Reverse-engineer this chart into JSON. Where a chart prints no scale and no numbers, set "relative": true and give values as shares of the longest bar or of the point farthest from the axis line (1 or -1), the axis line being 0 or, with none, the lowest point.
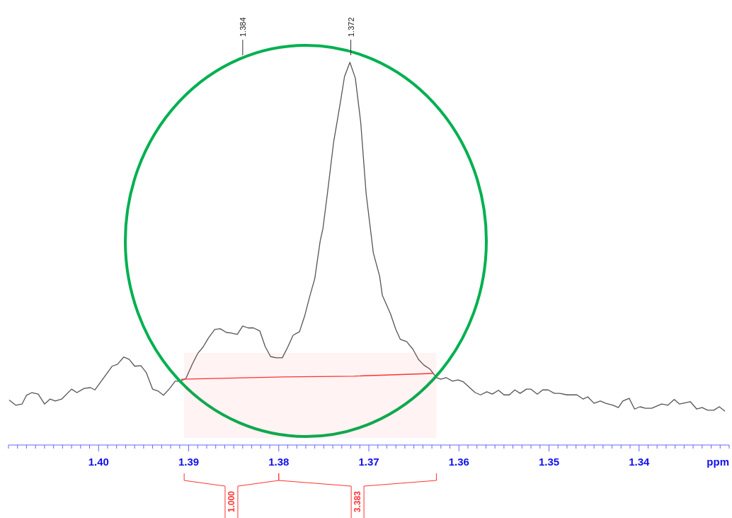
{
  "chart_data": {
    "type": "line",
    "relative": true,
    "xlabel": "ppm",
    "xlim": [
      1.41,
      1.33
    ],
    "xticks": [
      {
        "value": 1.41,
        "label": null
      },
      {
        "value": 1.409,
        "label": null
      },
      {
        "value": 1.408,
        "label": null
      },
      {
        "value": 1.407,
        "label": null
      },
      {
        "value": 1.406,
        "label": null
      },
      {
        "value": 1.405,
        "label": null
      },
      {
        "value": 1.404,
        "label": null
      },
      {
        "value": 1.403,
        "label": null
      },
      {
        "value": 1.402,
        "label": null
      },
      {
        "value": 1.401,
        "label": null
      },
      {
        "value": 1.4,
        "label": "1.40"
      },
      {
        "value": 1.399,
        "label": null
      },
      {
        "value": 1.398,
        "label": null
      },
      {
        "value": 1.397,
        "label": null
      },
      {
        "value": 1.396,
        "label": null
      },
      {
        "value": 1.395,
        "label": null
      },
      {
        "value": 1.394,
        "label": null
      },
      {
        "value": 1.393,
        "label": null
      },
      {
        "value": 1.392,
        "label": null
      },
      {
        "value": 1.391,
        "label": null
      },
      {
        "value": 1.39,
        "label": "1.39"
      },
      {
        "value": 1.389,
        "label": null
      },
      {
        "value": 1.388,
        "label": null
      },
      {
        "value": 1.387,
        "label": null
      },
      {
        "value": 1.386,
        "label": null
      },
      {
        "value": 1.385,
        "label": null
      },
      {
        "value": 1.384,
        "label": null
      },
      {
        "value": 1.383,
        "label": null
      },
      {
        "value": 1.382,
        "label": null
      },
      {
        "value": 1.381,
        "label": null
      },
      {
        "value": 1.38,
        "label": "1.38"
      },
      {
        "value": 1.379,
        "label": null
      },
      {
        "value": 1.378,
        "label": null
      },
      {
        "value": 1.377,
        "label": null
      },
      {
        "value": 1.376,
        "label": null
      },
      {
        "value": 1.375,
        "label": null
      },
      {
        "value": 1.374,
        "label": null
      },
      {
        "value": 1.373,
        "label": null
      },
      {
        "value": 1.372,
        "label": null
      },
      {
        "value": 1.371,
        "label": null
      },
      {
        "value": 1.37,
        "label": "1.37"
      },
      {
        "value": 1.369,
        "label": null
      },
      {
        "value": 1.368,
        "label": null
      },
      {
        "value": 1.367,
        "label": null
      },
      {
        "value": 1.366,
        "label": null
      },
      {
        "value": 1.365,
        "label": null
      },
      {
        "value": 1.364,
        "label": null
      },
      {
        "value": 1.363,
        "label": null
      },
      {
        "value": 1.362,
        "label": null
      },
      {
        "value": 1.361,
        "label": null
      },
      {
        "value": 1.36,
        "label": "1.36"
      },
      {
        "value": 1.359,
        "label": null
      },
      {
        "value": 1.358,
        "label": null
      },
      {
        "value": 1.357,
        "label": null
      },
      {
        "value": 1.356,
        "label": null
      },
      {
        "value": 1.355,
        "label": null
      },
      {
        "value": 1.354,
        "label": null
      },
      {
        "value": 1.353,
        "label": null
      },
      {
        "value": 1.352,
        "label": null
      },
      {
        "value": 1.351,
        "label": null
      },
      {
        "value": 1.35,
        "label": "1.35"
      },
      {
        "value": 1.349,
        "label": null
      },
      {
        "value": 1.348,
        "label": null
      },
      {
        "value": 1.347,
        "label": null
      },
      {
        "value": 1.346,
        "label": null
      },
      {
        "value": 1.345,
        "label": null
      },
      {
        "value": 1.344,
        "label": null
      },
      {
        "value": 1.343,
        "label": null
      },
      {
        "value": 1.342,
        "label": null
      },
      {
        "value": 1.341,
        "label": null
      },
      {
        "value": 1.34,
        "label": "1.34"
      },
      {
        "value": 1.339,
        "label": null
      },
      {
        "value": 1.338,
        "label": null
      },
      {
        "value": 1.337,
        "label": null
      },
      {
        "value": 1.336,
        "label": null
      },
      {
        "value": 1.335,
        "label": null
      },
      {
        "value": 1.334,
        "label": null
      },
      {
        "value": 1.333,
        "label": null
      },
      {
        "value": 1.332,
        "label": null
      },
      {
        "value": 1.331,
        "label": null
      },
      {
        "value": 1.33,
        "label": null
      }
    ],
    "series": [
      {
        "color": "#555555",
        "x": [
          1.4099,
          1.4092,
          1.4085,
          1.408,
          1.4074,
          1.4067,
          1.406,
          1.4054,
          1.4048,
          1.4041,
          1.403,
          1.4024,
          1.4016,
          1.4009,
          1.4004,
          1.3985,
          1.3979,
          1.3972,
          1.3966,
          1.396,
          1.3953,
          1.3947,
          1.394,
          1.3934,
          1.3928,
          1.3921,
          1.3915,
          1.3909,
          1.3903,
          1.3896,
          1.389,
          1.3884,
          1.3878,
          1.3871,
          1.3865,
          1.3858,
          1.3853,
          1.3846,
          1.384,
          1.3834,
          1.3828,
          1.3821,
          1.3815,
          1.3809,
          1.3803,
          1.3796,
          1.379,
          1.3784,
          1.3777,
          1.3771,
          1.3766,
          1.376,
          1.3754,
          1.3751,
          1.3746,
          1.3739,
          1.3735,
          1.3731,
          1.3727,
          1.3721,
          1.3715,
          1.3709,
          1.3703,
          1.3695,
          1.3688,
          1.3685,
          1.3676,
          1.367,
          1.3665,
          1.3658,
          1.3651,
          1.3645,
          1.3639,
          1.3632,
          1.3625,
          1.362,
          1.3614,
          1.3607,
          1.3601,
          1.3595,
          1.3582,
          1.3576,
          1.3569,
          1.3563,
          1.3556,
          1.355,
          1.3544,
          1.3538,
          1.3532,
          1.3525,
          1.352,
          1.3513,
          1.3507,
          1.3501,
          1.3494,
          1.3488,
          1.348,
          1.3469,
          1.3462,
          1.3457,
          1.345,
          1.3443,
          1.3437,
          1.3429,
          1.3423,
          1.3418,
          1.3411,
          1.3405,
          1.3399,
          1.3393,
          1.3386,
          1.3375,
          1.3368,
          1.3361,
          1.3355,
          1.3343,
          1.3336,
          1.333,
          1.3324,
          1.3317,
          1.3311,
          1.3305
        ],
        "values": [
          0.117,
          0.104,
          0.107,
          0.13,
          0.137,
          0.133,
          0.107,
          0.12,
          0.115,
          0.12,
          0.146,
          0.137,
          0.148,
          0.15,
          0.144,
          0.206,
          0.211,
          0.23,
          0.224,
          0.206,
          0.207,
          0.189,
          0.146,
          0.141,
          0.13,
          0.148,
          0.167,
          0.167,
          0.174,
          0.211,
          0.239,
          0.256,
          0.28,
          0.302,
          0.304,
          0.294,
          0.293,
          0.289,
          0.311,
          0.306,
          0.306,
          0.298,
          0.257,
          0.231,
          0.228,
          0.228,
          0.256,
          0.287,
          0.296,
          0.339,
          0.385,
          0.435,
          0.533,
          0.565,
          0.657,
          0.793,
          0.848,
          0.904,
          0.963,
          1.0,
          0.959,
          0.843,
          0.657,
          0.502,
          0.441,
          0.391,
          0.343,
          0.302,
          0.276,
          0.27,
          0.25,
          0.224,
          0.209,
          0.198,
          0.176,
          0.172,
          0.176,
          0.167,
          0.17,
          0.165,
          0.137,
          0.131,
          0.139,
          0.133,
          0.143,
          0.131,
          0.131,
          0.144,
          0.135,
          0.146,
          0.146,
          0.133,
          0.144,
          0.144,
          0.135,
          0.135,
          0.131,
          0.131,
          0.12,
          0.126,
          0.109,
          0.115,
          0.109,
          0.104,
          0.098,
          0.115,
          0.122,
          0.094,
          0.1,
          0.096,
          0.096,
          0.107,
          0.104,
          0.119,
          0.107,
          0.113,
          0.094,
          0.098,
          0.091,
          0.091,
          0.1,
          0.089
        ]
      },
      {
        "color": "#ff3333",
        "x": [
          1.3908,
          1.3793,
          1.3717,
          1.3629
        ],
        "values": [
          0.172,
          0.178,
          0.18,
          0.187
        ]
      }
    ],
    "annotations": [
      {
        "text": "1.384",
        "x": 1.384
      },
      {
        "text": "1.372",
        "x": 1.372
      }
    ],
    "bands": [
      {
        "axis": "x",
        "from": 1.3905,
        "to": 1.38,
        "label": "1.000",
        "color": "#ff3333"
      },
      {
        "axis": "x",
        "from": 1.38,
        "to": 1.3625,
        "label": "3.383",
        "color": "#ff3333"
      }
    ]
  }
}
